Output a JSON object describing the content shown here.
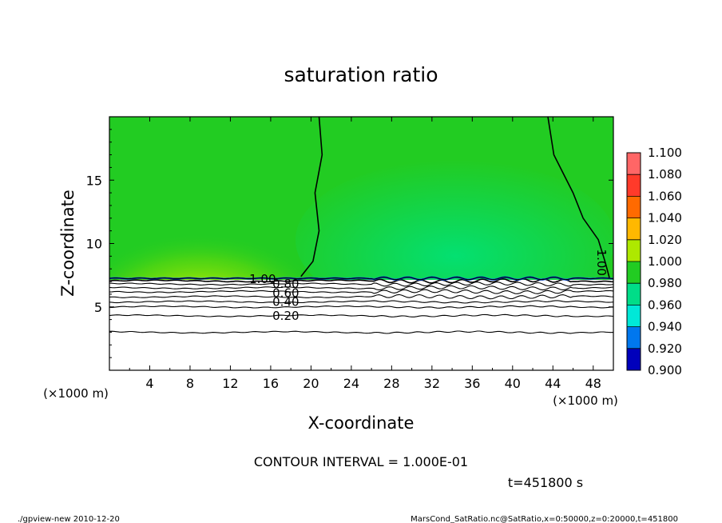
{
  "chart_data": {
    "type": "heatmap",
    "title": "saturation ratio",
    "xlabel": "X-coordinate",
    "ylabel": "Z-coordinate",
    "x_unit": "(×1000 m)",
    "x_unit_right": "(×1000 m)",
    "xlim": [
      0,
      50
    ],
    "ylim": [
      0,
      20
    ],
    "x_ticks": [
      4,
      8,
      12,
      16,
      20,
      24,
      28,
      32,
      36,
      40,
      44,
      48
    ],
    "y_ticks": [
      5,
      10,
      15
    ],
    "colorbar": {
      "levels": [
        "1.100",
        "1.080",
        "1.060",
        "1.040",
        "1.020",
        "1.000",
        "0.980",
        "0.960",
        "0.940",
        "0.920",
        "0.900"
      ],
      "colors": [
        "#ff6666",
        "#ff3a2a",
        "#ff6a00",
        "#ffb800",
        "#aee800",
        "#22cc22",
        "#00dd88",
        "#00e8d8",
        "#0077ee",
        "#0000bb",
        "#6600aa"
      ]
    },
    "contour_interval": "CONTOUR INTERVAL = 1.000E-01",
    "contour_labels": [
      {
        "text": "1.00",
        "x": 15.2,
        "z": 7.2
      },
      {
        "text": "0.80",
        "x": 17.5,
        "z": 6.8
      },
      {
        "text": "0.60",
        "x": 17.5,
        "z": 6.1
      },
      {
        "text": "0.40",
        "x": 17.5,
        "z": 5.4
      },
      {
        "text": "0.20",
        "x": 17.5,
        "z": 4.3
      },
      {
        "text": "1.00",
        "x": 48.8,
        "z": 8.5
      }
    ],
    "contour_levels_z": [
      {
        "value": 0.9,
        "z": 7.05
      },
      {
        "value": 0.8,
        "z": 6.8
      },
      {
        "value": 0.7,
        "z": 6.5
      },
      {
        "value": 0.6,
        "z": 6.2
      },
      {
        "value": 0.5,
        "z": 5.8
      },
      {
        "value": 0.4,
        "z": 5.4
      },
      {
        "value": 0.3,
        "z": 5.0
      },
      {
        "value": 0.2,
        "z": 4.3
      },
      {
        "value": 0.1,
        "z": 3.0
      }
    ],
    "saturation_boundary_1": [
      [
        20.8,
        20
      ],
      [
        21.1,
        17
      ],
      [
        20.4,
        14
      ],
      [
        20.8,
        11
      ],
      [
        20.2,
        8.6
      ],
      [
        19.0,
        7.4
      ]
    ],
    "saturation_boundary_2": [
      [
        43.5,
        20
      ],
      [
        44.1,
        17
      ],
      [
        46.0,
        14
      ],
      [
        47.0,
        12
      ],
      [
        48.5,
        10.3
      ],
      [
        49.2,
        8.5
      ],
      [
        49.6,
        7.3
      ]
    ],
    "grid": false,
    "legend": "right",
    "time": "t=451800 s"
  },
  "footer": {
    "left": "./gpview-new   2010-12-20",
    "right": "MarsCond_SatRatio.nc@SatRatio,x=0:50000,z=0:20000,t=451800"
  }
}
